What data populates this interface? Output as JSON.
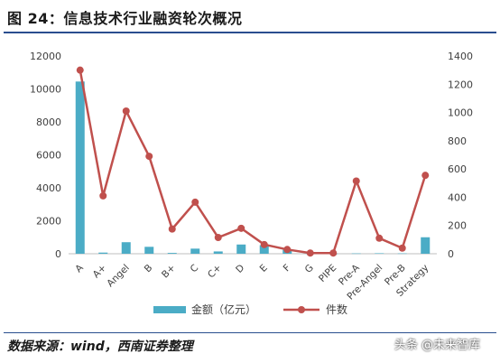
{
  "title": "图 24：信息技术行业融资轮次概况",
  "source": "数据来源：wind，西南证券整理",
  "watermark": "头条 @未来智库",
  "colors": {
    "bar": "#4bacc6",
    "line": "#c0504d"
  },
  "chart_data": {
    "type": "bar",
    "categories": [
      "A",
      "A+",
      "Angel",
      "B",
      "B+",
      "C",
      "C+",
      "D",
      "E",
      "F",
      "G",
      "PIPE",
      "Pre-A",
      "Pre-Angel",
      "Pre-B",
      "Strategy"
    ],
    "series": [
      {
        "name": "金额（亿元）",
        "type": "bar",
        "axis": "left",
        "values": [
          10450,
          70,
          700,
          420,
          50,
          310,
          140,
          560,
          520,
          240,
          15,
          5,
          20,
          30,
          20,
          1000
        ]
      },
      {
        "name": "件数",
        "type": "line",
        "axis": "right",
        "values": [
          1300,
          410,
          1010,
          690,
          175,
          365,
          115,
          180,
          65,
          30,
          5,
          5,
          515,
          110,
          40,
          555
        ]
      }
    ],
    "y_left": {
      "min": 0,
      "max": 12000,
      "ticks": [
        "0",
        "2000",
        "4000",
        "6000",
        "8000",
        "10000",
        "12000"
      ]
    },
    "y_right": {
      "min": 0,
      "max": 1400,
      "ticks": [
        "0",
        "200",
        "400",
        "600",
        "800",
        "1000",
        "1200",
        "1400"
      ]
    },
    "legend_position": "bottom",
    "grid": false
  }
}
